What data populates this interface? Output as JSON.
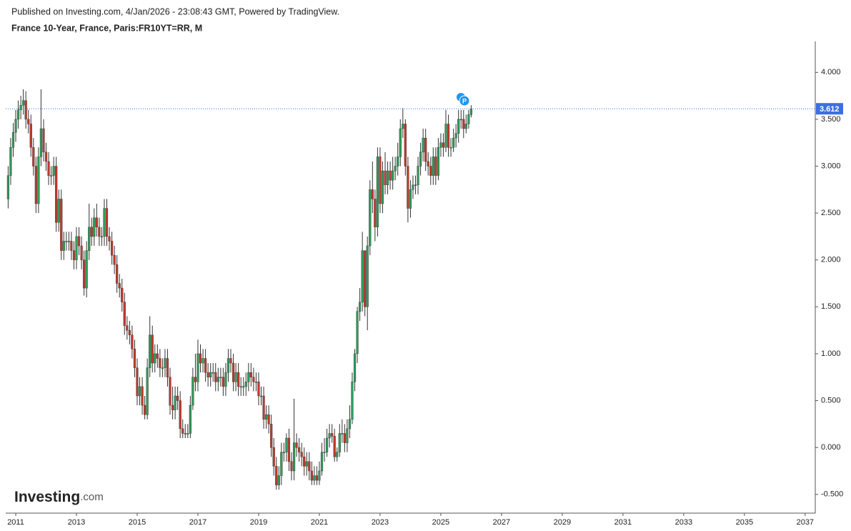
{
  "header": {
    "published": "Published on Investing.com, 4/Jan/2026 - 23:08:43 GMT, Powered by TradingView.",
    "logo": "Investing",
    "logo_suffix": ".com"
  },
  "chart_data": {
    "type": "candlestick",
    "title": "France 10-Year, France, Paris:FR10YT=RR, M",
    "up_color": "#2e9c5a",
    "down_color": "#c0392b",
    "last_price": 3.612,
    "last_price_color": "#3d6fe0",
    "xlim": [
      2010.67,
      2037.31
    ],
    "xticks": [
      2011,
      2013,
      2015,
      2017,
      2019,
      2021,
      2023,
      2025,
      2027,
      2029,
      2031,
      2033,
      2035,
      2037
    ],
    "ylim": [
      -0.7,
      4.33
    ],
    "yticks": [
      {
        "value": -0.5,
        "label": "-0.500"
      },
      {
        "value": 0,
        "label": "0.000"
      },
      {
        "value": 0.5,
        "label": "0.500"
      },
      {
        "value": 1,
        "label": "1.000"
      },
      {
        "value": 1.5,
        "label": "1.500"
      },
      {
        "value": 2,
        "label": "2.000"
      },
      {
        "value": 2.5,
        "label": "2.500"
      },
      {
        "value": 3,
        "label": "3.000"
      },
      {
        "value": 3.5,
        "label": "3.500"
      },
      {
        "value": 4,
        "label": "4.000"
      }
    ],
    "x": [
      2010.75,
      2010.833,
      2010.917,
      2011,
      2011.083,
      2011.167,
      2011.25,
      2011.333,
      2011.417,
      2011.5,
      2011.583,
      2011.667,
      2011.75,
      2011.833,
      2011.917,
      2012,
      2012.083,
      2012.167,
      2012.25,
      2012.333,
      2012.417,
      2012.5,
      2012.583,
      2012.667,
      2012.75,
      2012.833,
      2012.917,
      2013,
      2013.083,
      2013.167,
      2013.25,
      2013.333,
      2013.417,
      2013.5,
      2013.583,
      2013.667,
      2013.75,
      2013.833,
      2013.917,
      2014,
      2014.083,
      2014.167,
      2014.25,
      2014.333,
      2014.417,
      2014.5,
      2014.583,
      2014.667,
      2014.75,
      2014.833,
      2014.917,
      2015,
      2015.083,
      2015.167,
      2015.25,
      2015.333,
      2015.417,
      2015.5,
      2015.583,
      2015.667,
      2015.75,
      2015.833,
      2015.917,
      2016,
      2016.083,
      2016.167,
      2016.25,
      2016.333,
      2016.417,
      2016.5,
      2016.583,
      2016.667,
      2016.75,
      2016.833,
      2016.917,
      2017,
      2017.083,
      2017.167,
      2017.25,
      2017.333,
      2017.417,
      2017.5,
      2017.583,
      2017.667,
      2017.75,
      2017.833,
      2017.917,
      2018,
      2018.083,
      2018.167,
      2018.25,
      2018.333,
      2018.417,
      2018.5,
      2018.583,
      2018.667,
      2018.75,
      2018.833,
      2018.917,
      2019,
      2019.083,
      2019.167,
      2019.25,
      2019.333,
      2019.417,
      2019.5,
      2019.583,
      2019.667,
      2019.75,
      2019.833,
      2019.917,
      2020,
      2020.083,
      2020.167,
      2020.25,
      2020.333,
      2020.417,
      2020.5,
      2020.583,
      2020.667,
      2020.75,
      2020.833,
      2020.917,
      2021,
      2021.083,
      2021.167,
      2021.25,
      2021.333,
      2021.417,
      2021.5,
      2021.583,
      2021.667,
      2021.75,
      2021.833,
      2021.917,
      2022,
      2022.083,
      2022.167,
      2022.25,
      2022.333,
      2022.417,
      2022.5,
      2022.583,
      2022.667,
      2022.75,
      2022.833,
      2022.917,
      2023,
      2023.083,
      2023.167,
      2023.25,
      2023.333,
      2023.417,
      2023.5,
      2023.583,
      2023.667,
      2023.75,
      2023.833,
      2023.917,
      2024,
      2024.083,
      2024.167,
      2024.25,
      2024.333,
      2024.417,
      2024.5,
      2024.583,
      2024.667,
      2024.75,
      2024.833,
      2024.917,
      2025,
      2025.083,
      2025.167,
      2025.25,
      2025.333,
      2025.417,
      2025.5,
      2025.583,
      2025.667,
      2025.75,
      2025.833,
      2025.917,
      2026
    ],
    "open": [
      2.65,
      2.9,
      3.2,
      3.36,
      3.5,
      3.6,
      3.65,
      3.7,
      3.5,
      3.45,
      3.2,
      3.0,
      2.6,
      3.1,
      3.4,
      3.15,
      3.05,
      2.9,
      2.9,
      3.0,
      2.4,
      2.65,
      2.1,
      2.2,
      2.2,
      2.2,
      2.1,
      2.0,
      2.25,
      2.15,
      2.0,
      1.7,
      2.1,
      2.35,
      2.25,
      2.45,
      2.35,
      2.25,
      2.25,
      2.55,
      2.25,
      2.2,
      2.05,
      1.95,
      1.75,
      1.7,
      1.55,
      1.3,
      1.25,
      1.2,
      1.05,
      0.85,
      0.55,
      0.65,
      0.45,
      0.35,
      0.85,
      1.2,
      0.9,
      1.0,
      0.95,
      0.85,
      0.85,
      0.95,
      0.75,
      0.45,
      0.4,
      0.55,
      0.5,
      0.2,
      0.15,
      0.15,
      0.15,
      0.45,
      0.75,
      0.7,
      1.0,
      0.9,
      0.95,
      0.8,
      0.75,
      0.8,
      0.8,
      0.7,
      0.75,
      0.75,
      0.65,
      0.8,
      0.95,
      0.9,
      0.7,
      0.8,
      0.65,
      0.65,
      0.65,
      0.7,
      0.8,
      0.75,
      0.7,
      0.7,
      0.55,
      0.55,
      0.3,
      0.35,
      0.25,
      0.0,
      -0.2,
      -0.4,
      -0.3,
      -0.05,
      -0.05,
      0.1,
      -0.15,
      -0.25,
      0.05,
      0.0,
      -0.05,
      -0.1,
      -0.2,
      -0.15,
      -0.25,
      -0.35,
      -0.3,
      -0.35,
      -0.25,
      -0.05,
      -0.05,
      0.1,
      0.15,
      0.12,
      -0.1,
      -0.05,
      0.15,
      0.15,
      0.05,
      0.2,
      0.3,
      0.7,
      1.0,
      1.45,
      1.55,
      2.1,
      1.5,
      2.15,
      2.75,
      2.65,
      2.35,
      3.1,
      2.6,
      2.95,
      2.8,
      2.95,
      2.85,
      2.95,
      3.0,
      3.1,
      3.4,
      3.45,
      3.0,
      2.55,
      2.75,
      2.8,
      2.8,
      3.0,
      3.15,
      3.3,
      3.05,
      3.0,
      2.9,
      3.1,
      2.9,
      3.2,
      3.25,
      3.2,
      3.45,
      3.2,
      3.2,
      3.3,
      3.35,
      3.5,
      3.5,
      3.4,
      3.45,
      3.55
    ],
    "high": [
      3.0,
      3.3,
      3.46,
      3.6,
      3.7,
      3.75,
      3.82,
      3.8,
      3.6,
      3.55,
      3.3,
      3.1,
      3.2,
      3.82,
      3.5,
      3.25,
      3.15,
      3.0,
      3.1,
      3.1,
      2.75,
      2.75,
      2.3,
      2.3,
      2.3,
      2.3,
      2.2,
      2.35,
      2.35,
      2.25,
      2.1,
      2.2,
      2.6,
      2.45,
      2.55,
      2.6,
      2.45,
      2.35,
      2.65,
      2.65,
      2.35,
      2.3,
      2.15,
      2.05,
      1.85,
      1.8,
      1.65,
      1.4,
      1.35,
      1.3,
      1.15,
      0.95,
      0.75,
      0.75,
      0.55,
      0.95,
      1.4,
      1.3,
      1.1,
      1.1,
      1.05,
      0.95,
      1.05,
      1.05,
      0.85,
      0.65,
      0.65,
      0.65,
      0.6,
      0.3,
      0.25,
      0.25,
      0.55,
      0.85,
      1.0,
      1.15,
      1.1,
      1.05,
      1.05,
      0.9,
      0.9,
      0.9,
      0.9,
      0.85,
      0.85,
      0.85,
      0.9,
      1.05,
      1.05,
      1.0,
      0.9,
      0.9,
      0.75,
      0.75,
      0.8,
      0.9,
      0.9,
      0.85,
      0.8,
      0.8,
      0.65,
      0.65,
      0.45,
      0.45,
      0.35,
      0.1,
      -0.1,
      -0.2,
      0.05,
      0.05,
      0.15,
      0.2,
      -0.05,
      0.52,
      0.15,
      0.1,
      0.05,
      0.0,
      -0.05,
      -0.05,
      -0.15,
      -0.2,
      -0.2,
      -0.15,
      0.05,
      0.1,
      0.2,
      0.25,
      0.25,
      0.2,
      0.0,
      0.25,
      0.3,
      0.25,
      0.3,
      0.45,
      0.8,
      1.05,
      1.5,
      1.7,
      2.3,
      2.1,
      2.25,
      2.85,
      3.05,
      2.75,
      3.2,
      3.2,
      3.05,
      3.15,
      3.05,
      3.05,
      3.1,
      3.1,
      3.25,
      3.5,
      3.62,
      3.5,
      3.1,
      2.85,
      2.9,
      2.9,
      3.1,
      3.25,
      3.4,
      3.4,
      3.15,
      3.1,
      3.2,
      3.2,
      3.3,
      3.35,
      3.35,
      3.6,
      3.55,
      3.3,
      3.4,
      3.45,
      3.6,
      3.6,
      3.6,
      3.55,
      3.6,
      3.65
    ],
    "low": [
      2.55,
      2.8,
      3.1,
      3.26,
      3.4,
      3.5,
      3.55,
      3.4,
      3.35,
      3.1,
      2.9,
      2.5,
      2.5,
      3.0,
      3.05,
      2.95,
      2.8,
      2.8,
      2.8,
      2.3,
      2.3,
      2.0,
      2.0,
      2.1,
      2.1,
      2.0,
      1.9,
      1.9,
      2.05,
      1.9,
      1.62,
      1.6,
      2.0,
      2.15,
      2.15,
      2.25,
      2.15,
      2.15,
      2.15,
      2.15,
      2.1,
      1.95,
      1.85,
      1.65,
      1.6,
      1.45,
      1.2,
      1.15,
      1.1,
      0.95,
      0.75,
      0.45,
      0.45,
      0.35,
      0.3,
      0.3,
      0.75,
      0.8,
      0.8,
      0.85,
      0.75,
      0.75,
      0.75,
      0.65,
      0.35,
      0.3,
      0.3,
      0.4,
      0.1,
      0.1,
      0.1,
      0.1,
      0.1,
      0.4,
      0.6,
      0.6,
      0.8,
      0.8,
      0.7,
      0.65,
      0.65,
      0.7,
      0.6,
      0.6,
      0.65,
      0.55,
      0.55,
      0.7,
      0.8,
      0.6,
      0.6,
      0.55,
      0.55,
      0.55,
      0.55,
      0.6,
      0.65,
      0.6,
      0.6,
      0.45,
      0.45,
      0.2,
      0.2,
      0.15,
      -0.1,
      -0.3,
      -0.45,
      -0.45,
      -0.4,
      -0.15,
      -0.15,
      -0.25,
      -0.35,
      -0.35,
      -0.1,
      -0.15,
      -0.2,
      -0.3,
      -0.3,
      -0.35,
      -0.4,
      -0.4,
      -0.4,
      -0.4,
      -0.3,
      -0.15,
      -0.1,
      0.0,
      0.05,
      -0.15,
      -0.15,
      -0.1,
      0.05,
      -0.05,
      -0.05,
      0.1,
      0.25,
      0.6,
      0.9,
      1.35,
      1.45,
      1.4,
      1.25,
      2.05,
      2.5,
      2.2,
      2.25,
      2.5,
      2.5,
      2.7,
      2.7,
      2.75,
      2.75,
      2.85,
      2.9,
      3.0,
      3.3,
      2.9,
      2.4,
      2.45,
      2.65,
      2.7,
      2.7,
      2.9,
      3.05,
      2.95,
      2.9,
      2.8,
      2.8,
      2.8,
      2.85,
      3.1,
      3.1,
      3.15,
      3.1,
      3.1,
      3.15,
      3.2,
      3.25,
      3.4,
      3.3,
      3.35,
      3.4,
      3.52
    ],
    "close": [
      2.9,
      3.2,
      3.36,
      3.5,
      3.6,
      3.65,
      3.7,
      3.5,
      3.45,
      3.2,
      3.0,
      2.6,
      3.1,
      3.4,
      3.15,
      3.05,
      2.9,
      2.9,
      3.0,
      2.4,
      2.65,
      2.1,
      2.2,
      2.2,
      2.2,
      2.1,
      2.0,
      2.25,
      2.15,
      2.0,
      1.7,
      2.1,
      2.35,
      2.25,
      2.45,
      2.35,
      2.25,
      2.25,
      2.55,
      2.25,
      2.2,
      2.05,
      1.95,
      1.75,
      1.7,
      1.55,
      1.3,
      1.25,
      1.2,
      1.05,
      0.85,
      0.55,
      0.65,
      0.45,
      0.35,
      0.85,
      1.2,
      0.9,
      1.0,
      0.95,
      0.85,
      0.85,
      0.95,
      0.75,
      0.45,
      0.4,
      0.55,
      0.5,
      0.2,
      0.15,
      0.15,
      0.15,
      0.45,
      0.75,
      0.7,
      1.0,
      0.9,
      0.95,
      0.8,
      0.75,
      0.8,
      0.8,
      0.7,
      0.75,
      0.75,
      0.65,
      0.8,
      0.95,
      0.9,
      0.7,
      0.8,
      0.65,
      0.65,
      0.65,
      0.7,
      0.8,
      0.75,
      0.7,
      0.7,
      0.55,
      0.55,
      0.3,
      0.35,
      0.25,
      0.0,
      -0.2,
      -0.4,
      -0.3,
      -0.05,
      -0.05,
      0.1,
      -0.15,
      -0.25,
      0.05,
      0.0,
      -0.05,
      -0.1,
      -0.2,
      -0.15,
      -0.25,
      -0.35,
      -0.3,
      -0.35,
      -0.25,
      -0.05,
      -0.05,
      0.1,
      0.15,
      0.12,
      -0.1,
      -0.05,
      0.15,
      0.15,
      0.05,
      0.2,
      0.3,
      0.7,
      1.0,
      1.45,
      1.55,
      2.1,
      1.5,
      2.15,
      2.75,
      2.65,
      2.35,
      3.1,
      2.6,
      2.95,
      2.8,
      2.95,
      2.85,
      2.95,
      3.0,
      3.1,
      3.4,
      3.45,
      3.0,
      2.55,
      2.75,
      2.8,
      2.8,
      3.0,
      3.15,
      3.3,
      3.05,
      3.0,
      2.9,
      3.1,
      2.9,
      3.2,
      3.25,
      3.2,
      3.45,
      3.2,
      3.2,
      3.3,
      3.35,
      3.5,
      3.5,
      3.4,
      3.45,
      3.55,
      3.612
    ]
  }
}
